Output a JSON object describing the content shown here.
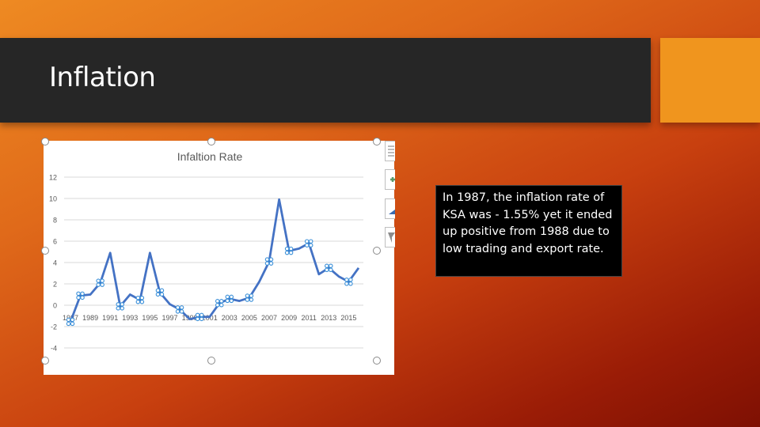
{
  "slide": {
    "title": "Inflation",
    "colors": {
      "title_bar": "#262626",
      "accent_box": "#f0951e",
      "line": "#4472c4",
      "background_from": "#ee8a22",
      "background_to": "#7e1003"
    }
  },
  "textbox": {
    "text": "In 1987, the inflation rate of KSA was - 1.55% yet it ended up positive from 1988 due to low trading and export rate."
  },
  "chart_side_buttons": [
    {
      "icon": "chart-layout-icon"
    },
    {
      "icon": "plus-icon"
    },
    {
      "icon": "brush-style-icon"
    },
    {
      "icon": "filter-icon"
    }
  ],
  "chart_data": {
    "type": "line",
    "title": "Infaltion Rate",
    "xlabel": "",
    "ylabel": "",
    "ylim": [
      -4,
      12
    ],
    "yticks": [
      12,
      10,
      8,
      6,
      4,
      2,
      0,
      -2,
      -4
    ],
    "xtick_labels": [
      "1987",
      "1989",
      "1991",
      "1993",
      "1995",
      "1997",
      "1999",
      "2001",
      "2003",
      "2005",
      "2007",
      "2009",
      "2011",
      "2013",
      "2015"
    ],
    "grid": true,
    "legend": null,
    "categories": [
      "1987",
      "1988",
      "1989",
      "1990",
      "1991",
      "1992",
      "1993",
      "1994",
      "1995",
      "1996",
      "1997",
      "1998",
      "1999",
      "2000",
      "2001",
      "2002",
      "2003",
      "2004",
      "2005",
      "2006",
      "2007",
      "2008",
      "2009",
      "2010",
      "2011",
      "2012",
      "2013",
      "2014",
      "2015",
      "2016"
    ],
    "series": [
      {
        "name": "Inflation Rate",
        "color": "#4472c4",
        "values": [
          -1.55,
          0.9,
          1.0,
          2.1,
          4.9,
          -0.1,
          1.0,
          0.5,
          4.9,
          1.2,
          0.1,
          -0.4,
          -1.3,
          -1.1,
          -1.1,
          0.2,
          0.6,
          0.4,
          0.7,
          2.2,
          4.1,
          9.9,
          5.1,
          5.3,
          5.8,
          2.9,
          3.5,
          2.7,
          2.2,
          3.5
        ],
        "marked_points": [
          "1987",
          "1988",
          "1990",
          "1992",
          "1994",
          "1996",
          "1998",
          "2000",
          "2002",
          "2003",
          "2005",
          "2007",
          "2009",
          "2011",
          "2013",
          "2015"
        ]
      }
    ]
  }
}
